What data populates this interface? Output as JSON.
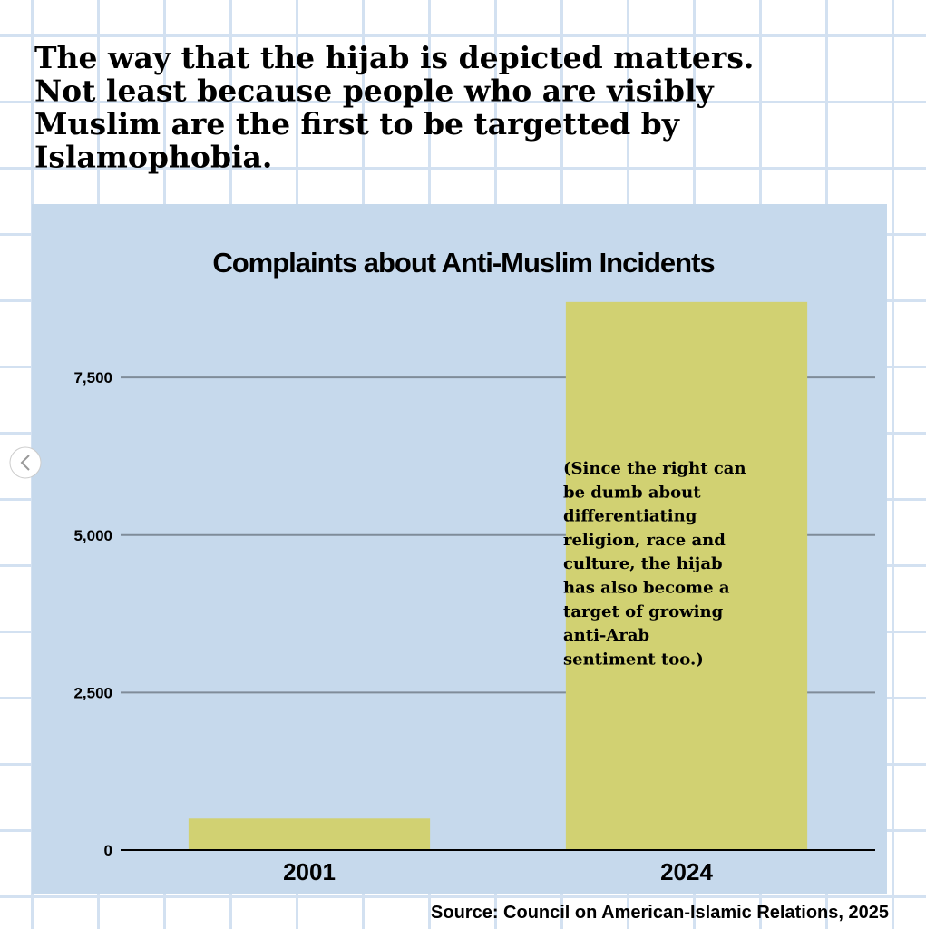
{
  "heading": [
    "The way that the hijab is depicted matters.",
    "Not least because people who are visibly",
    "Muslim are the first to be targetted by",
    "Islamophobia."
  ],
  "chart_data": {
    "type": "bar",
    "title": "Complaints about Anti-Muslim Incidents",
    "categories": [
      "2001",
      "2024"
    ],
    "values": [
      500,
      8700
    ],
    "color": "#d1d172",
    "ylim": [
      0,
      9000
    ],
    "yticks": [
      0,
      {
        "value": 2500,
        "label": "2,500"
      },
      {
        "value": 5000,
        "label": "5,000"
      },
      {
        "value": 7500,
        "label": "7,500"
      }
    ],
    "grid": true,
    "annotation": [
      "(Since the right can",
      "be dumb about",
      "differentiating",
      "religion, race and",
      "culture, the hijab",
      "has also become a",
      "target of growing",
      "anti-Arab",
      "sentiment too.)"
    ],
    "source": "Source: Council on American-Islamic Relations, 2025"
  }
}
